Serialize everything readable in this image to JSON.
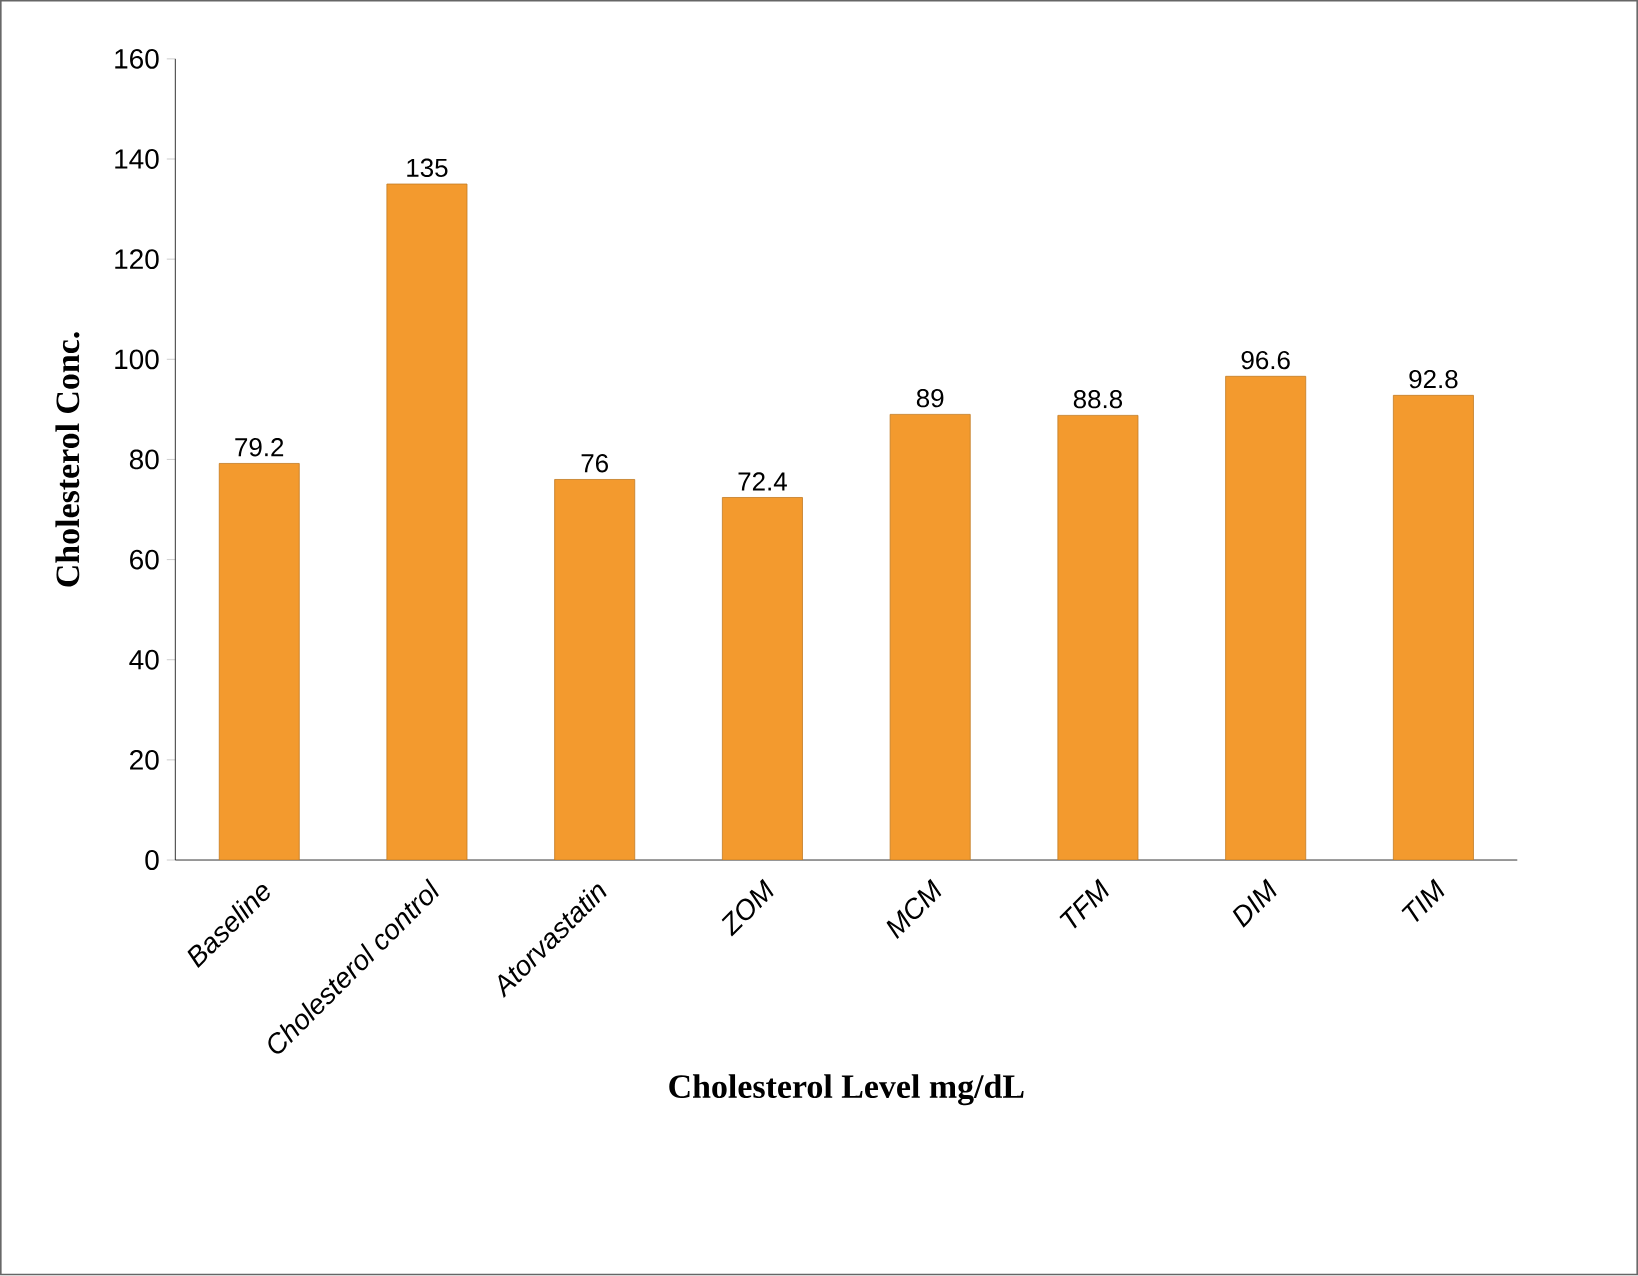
{
  "chart_data": {
    "type": "bar",
    "xlabel": "Cholesterol Level mg/dL",
    "ylabel": "Cholesterol Conc.",
    "categories": [
      "Baseline",
      "Cholesterol control",
      "Atorvastatin",
      "ZOM",
      "MCM",
      "TFM",
      "DIM",
      "TIM"
    ],
    "values": [
      79.2,
      135,
      76,
      72.4,
      89,
      88.8,
      96.6,
      92.8
    ],
    "color": "#f39a2e",
    "ylim": [
      0,
      160
    ],
    "yticks": [
      0,
      20,
      40,
      60,
      80,
      100,
      120,
      140,
      160
    ],
    "data_labels": true
  }
}
